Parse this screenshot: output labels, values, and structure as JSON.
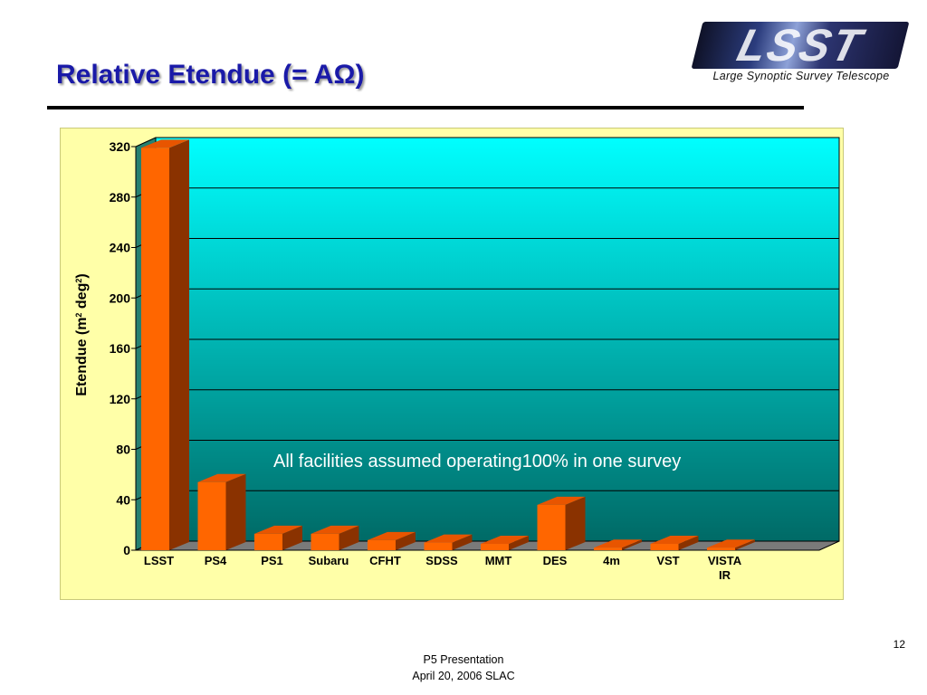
{
  "slide": {
    "title": "Relative Etendue (= AΩ)",
    "page_number": "12",
    "footer_line1": "P5 Presentation",
    "footer_line2": "April 20, 2006 SLAC"
  },
  "logo": {
    "letters": "LSST",
    "subtitle": "Large Synoptic Survey Telescope"
  },
  "chart_data": {
    "type": "bar",
    "categories": [
      "LSST",
      "PS4",
      "PS1",
      "Subaru",
      "CFHT",
      "SDSS",
      "MMT",
      "DES",
      "4m",
      "VST",
      "VISTA IR"
    ],
    "category_lines": [
      [
        "LSST"
      ],
      [
        "PS4"
      ],
      [
        "PS1"
      ],
      [
        "Subaru"
      ],
      [
        "CFHT"
      ],
      [
        "SDSS"
      ],
      [
        "MMT"
      ],
      [
        "DES"
      ],
      [
        "4m"
      ],
      [
        "VST"
      ],
      [
        "VISTA",
        "IR"
      ]
    ],
    "values": [
      319,
      54,
      13,
      13,
      8,
      6,
      5,
      36,
      2,
      5,
      2
    ],
    "title": "",
    "xlabel": "",
    "ylabel": "Etendue  (m2 deg2)",
    "ylabel_parts": {
      "main": "Etendue  (m",
      "sup1": "2",
      "mid": " deg",
      "sup2": "2",
      "end": ")"
    },
    "ylim": [
      0,
      320
    ],
    "yticks": [
      "320",
      "280",
      "240",
      "200",
      "160",
      "120",
      "80",
      "40",
      "0"
    ],
    "ytick_values": [
      320,
      280,
      240,
      200,
      160,
      120,
      80,
      40,
      0
    ],
    "grid": true,
    "legend": "none",
    "annotation": "All facilities assumed operating100% in one survey",
    "colors": {
      "bar_front": "#ff6600",
      "bar_side": "#8a3200",
      "bar_top": "#e85500",
      "plot_top": "#00ffff",
      "plot_bottom": "#006a66",
      "floor": "#7a7a7a",
      "frame_bg": "#ffffa8"
    }
  }
}
